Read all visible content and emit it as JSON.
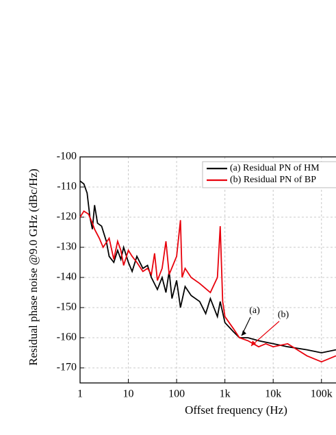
{
  "chart_data": {
    "type": "line",
    "xlabel": "Offset frequency (Hz)",
    "ylabel": "Residual phase noise @9.0 GHz (dBc/Hz)",
    "log_x": true,
    "grid": true,
    "legend": "upper right",
    "xlim": [
      1,
      200000
    ],
    "xticks": [
      1,
      10,
      100,
      {
        "value": 1000,
        "label": "1k"
      },
      {
        "value": 10000,
        "label": "10k"
      },
      {
        "value": 100000,
        "label": "100k"
      }
    ],
    "ylim": [
      -175,
      -100
    ],
    "yticks": [
      -100,
      -110,
      -120,
      -130,
      -140,
      -150,
      -160,
      -170
    ],
    "series": [
      {
        "name": "(a) Residual PN of HM",
        "color": "#000000",
        "x": [
          1,
          1.2,
          1.4,
          1.6,
          1.8,
          2,
          2.3,
          2.8,
          3.5,
          4,
          5,
          6,
          7,
          8,
          10,
          12,
          15,
          20,
          25,
          30,
          40,
          50,
          60,
          70,
          80,
          100,
          120,
          150,
          200,
          300,
          400,
          500,
          700,
          800,
          1000,
          1500,
          2000,
          3000,
          5000,
          10000,
          20000,
          50000,
          100000,
          200000
        ],
        "values": [
          -108,
          -109,
          -112,
          -120,
          -124,
          -116,
          -122,
          -123,
          -128,
          -133,
          -135,
          -131,
          -134,
          -130,
          -135,
          -138,
          -133,
          -137,
          -136,
          -140,
          -144,
          -140,
          -145,
          -138,
          -147,
          -141,
          -150,
          -143,
          -146,
          -148,
          -152,
          -147,
          -153,
          -148,
          -155,
          -158,
          -160,
          -160,
          -161,
          -162,
          -163,
          -164,
          -165,
          -164
        ]
      },
      {
        "name": "(b) Residual PN of BP",
        "color": "#e8000b",
        "x": [
          1,
          1.2,
          1.5,
          1.8,
          2,
          2.5,
          3,
          4,
          5,
          6,
          7,
          8,
          10,
          12,
          15,
          20,
          25,
          30,
          35,
          40,
          50,
          60,
          70,
          100,
          120,
          130,
          150,
          200,
          300,
          500,
          700,
          800,
          900,
          1000,
          1500,
          2000,
          3000,
          5000,
          7000,
          10000,
          20000,
          50000,
          100000,
          200000
        ],
        "values": [
          -120,
          -118,
          -119,
          -122,
          -124,
          -127,
          -130,
          -127,
          -134,
          -128,
          -131,
          -136,
          -131,
          -133,
          -135,
          -138,
          -137,
          -139,
          -132,
          -141,
          -137,
          -128,
          -139,
          -133,
          -121,
          -140,
          -137,
          -140,
          -142,
          -145,
          -140,
          -123,
          -148,
          -153,
          -157,
          -160,
          -161,
          -163,
          -162,
          -163,
          -162,
          -166,
          -168,
          -166
        ]
      }
    ],
    "annotations": [
      {
        "text": "(a)"
      },
      {
        "text": "(b)"
      }
    ]
  }
}
